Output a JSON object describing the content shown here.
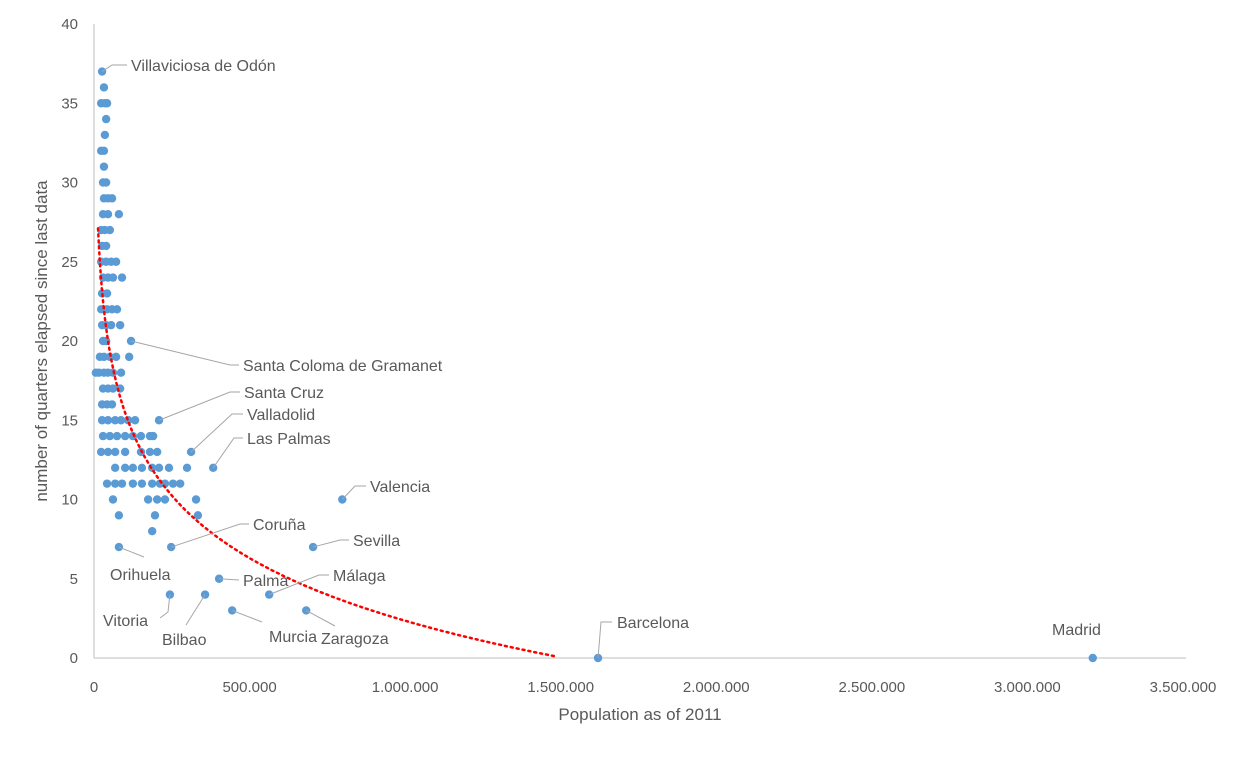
{
  "chart_data": {
    "type": "scatter",
    "title": "",
    "xlabel": "Population as of 2011",
    "ylabel": "number of quarters elapsed since last data",
    "xlim": [
      0,
      3500000
    ],
    "ylim": [
      0,
      40
    ],
    "x_ticks": [
      0,
      500000,
      1000000,
      1500000,
      2000000,
      2500000,
      3000000,
      3500000
    ],
    "x_tick_labels": [
      "0",
      "500.000",
      "1.000.000",
      "1.500.000",
      "2.000.000",
      "2.500.000",
      "3.000.000",
      "3.500.000"
    ],
    "y_ticks": [
      0,
      5,
      10,
      15,
      20,
      25,
      30,
      35,
      40
    ],
    "y_tick_labels": [
      "0",
      "5",
      "10",
      "15",
      "20",
      "25",
      "30",
      "35",
      "40"
    ],
    "grid": false,
    "legend": "none",
    "colors": {
      "points": "#5b9bd5",
      "trendline": "#ff0000",
      "axis": "#bfbfbf",
      "text": "#595959"
    },
    "trendline": {
      "type": "logarithmic",
      "equation": "y = -5.7 ln(x) + 81.1",
      "x_range": [
        13000,
        1480000
      ],
      "style": "dotted"
    },
    "labeled_points": [
      {
        "name": "Villaviciosa de Odón",
        "x": 26000,
        "y": 37
      },
      {
        "name": "Santa Coloma de Gramanet",
        "x": 119000,
        "y": 20
      },
      {
        "name": "Santa Cruz",
        "x": 209000,
        "y": 15
      },
      {
        "name": "Valladolid",
        "x": 312000,
        "y": 13
      },
      {
        "name": "Las Palmas",
        "x": 383000,
        "y": 12
      },
      {
        "name": "Valencia",
        "x": 798000,
        "y": 10
      },
      {
        "name": "Coruña",
        "x": 248000,
        "y": 7
      },
      {
        "name": "Sevilla",
        "x": 704000,
        "y": 7
      },
      {
        "name": "Orihuela",
        "x": 80000,
        "y": 7
      },
      {
        "name": "Palma",
        "x": 402000,
        "y": 5
      },
      {
        "name": "Málaga",
        "x": 563000,
        "y": 4
      },
      {
        "name": "Vitoria",
        "x": 244000,
        "y": 4
      },
      {
        "name": "Bilbao",
        "x": 357000,
        "y": 4
      },
      {
        "name": "Murcia",
        "x": 444000,
        "y": 3
      },
      {
        "name": "Zaragoza",
        "x": 682000,
        "y": 3
      },
      {
        "name": "Barcelona",
        "x": 1620000,
        "y": 0
      },
      {
        "name": "Madrid",
        "x": 3210000,
        "y": 0
      }
    ],
    "points": [
      [
        32000,
        36
      ],
      [
        23000,
        35
      ],
      [
        35000,
        35
      ],
      [
        42000,
        35
      ],
      [
        39000,
        34
      ],
      [
        35000,
        33
      ],
      [
        23000,
        32
      ],
      [
        32000,
        32
      ],
      [
        32000,
        31
      ],
      [
        29000,
        30
      ],
      [
        39000,
        30
      ],
      [
        32000,
        29
      ],
      [
        45000,
        29
      ],
      [
        58000,
        29
      ],
      [
        29000,
        28
      ],
      [
        45000,
        28
      ],
      [
        80000,
        28
      ],
      [
        23000,
        27
      ],
      [
        35000,
        27
      ],
      [
        51000,
        27
      ],
      [
        26000,
        26
      ],
      [
        39000,
        26
      ],
      [
        23000,
        25
      ],
      [
        39000,
        25
      ],
      [
        55000,
        25
      ],
      [
        71000,
        25
      ],
      [
        29000,
        24
      ],
      [
        45000,
        24
      ],
      [
        61000,
        24
      ],
      [
        90000,
        24
      ],
      [
        26000,
        23
      ],
      [
        42000,
        23
      ],
      [
        23000,
        22
      ],
      [
        42000,
        22
      ],
      [
        58000,
        22
      ],
      [
        74000,
        22
      ],
      [
        26000,
        21
      ],
      [
        39000,
        21
      ],
      [
        55000,
        21
      ],
      [
        84000,
        21
      ],
      [
        29000,
        20
      ],
      [
        39000,
        20
      ],
      [
        19000,
        19
      ],
      [
        32000,
        19
      ],
      [
        51000,
        19
      ],
      [
        71000,
        19
      ],
      [
        113000,
        19
      ],
      [
        6000,
        18
      ],
      [
        16000,
        18
      ],
      [
        32000,
        18
      ],
      [
        45000,
        18
      ],
      [
        61000,
        18
      ],
      [
        87000,
        18
      ],
      [
        29000,
        17
      ],
      [
        45000,
        17
      ],
      [
        61000,
        17
      ],
      [
        84000,
        17
      ],
      [
        26000,
        16
      ],
      [
        42000,
        16
      ],
      [
        58000,
        16
      ],
      [
        26000,
        15
      ],
      [
        45000,
        15
      ],
      [
        68000,
        15
      ],
      [
        87000,
        15
      ],
      [
        110000,
        15
      ],
      [
        132000,
        15
      ],
      [
        29000,
        14
      ],
      [
        51000,
        14
      ],
      [
        74000,
        14
      ],
      [
        100000,
        14
      ],
      [
        125000,
        14
      ],
      [
        151000,
        14
      ],
      [
        180000,
        14
      ],
      [
        190000,
        14
      ],
      [
        23000,
        13
      ],
      [
        45000,
        13
      ],
      [
        68000,
        13
      ],
      [
        100000,
        13
      ],
      [
        151000,
        13
      ],
      [
        180000,
        13
      ],
      [
        203000,
        13
      ],
      [
        68000,
        12
      ],
      [
        100000,
        12
      ],
      [
        125000,
        12
      ],
      [
        154000,
        12
      ],
      [
        187000,
        12
      ],
      [
        209000,
        12
      ],
      [
        241000,
        12
      ],
      [
        299000,
        12
      ],
      [
        42000,
        11
      ],
      [
        68000,
        11
      ],
      [
        90000,
        11
      ],
      [
        125000,
        11
      ],
      [
        154000,
        11
      ],
      [
        187000,
        11
      ],
      [
        212000,
        11
      ],
      [
        228000,
        11
      ],
      [
        254000,
        11
      ],
      [
        277000,
        11
      ],
      [
        61000,
        10
      ],
      [
        174000,
        10
      ],
      [
        203000,
        10
      ],
      [
        228000,
        10
      ],
      [
        328000,
        10
      ],
      [
        80000,
        9
      ],
      [
        196000,
        9
      ],
      [
        334000,
        9
      ],
      [
        187000,
        8
      ]
    ]
  }
}
